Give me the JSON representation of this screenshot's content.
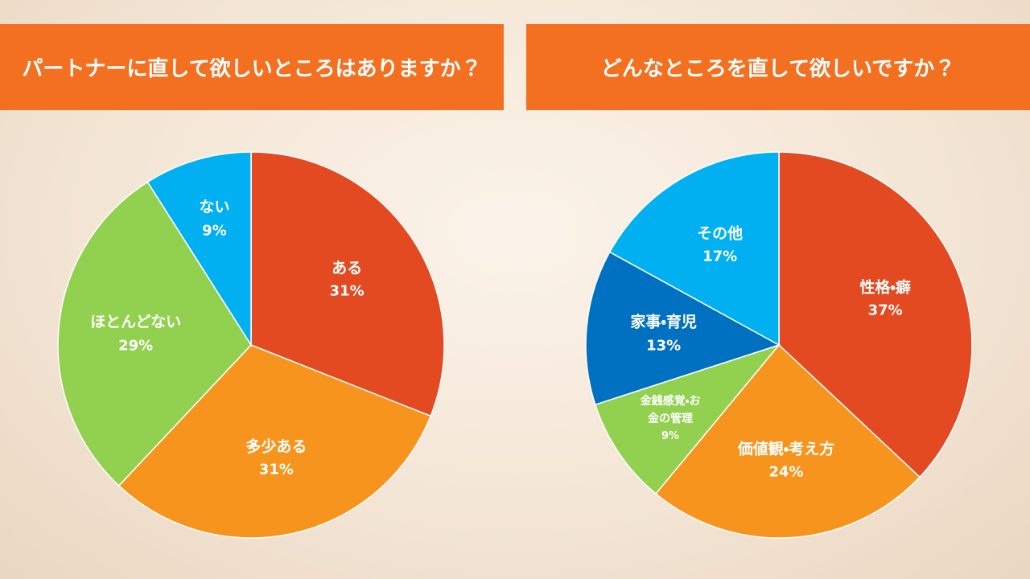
{
  "chart_data": [
    {
      "type": "pie",
      "title": "パートナーに直して欲しいところはありますか？",
      "categories": [
        "ある",
        "多少ある",
        "ほとんどない",
        "ない"
      ],
      "values": [
        31,
        31,
        29,
        9
      ],
      "value_labels": [
        "31%",
        "31%",
        "29%",
        "9%"
      ],
      "colors": [
        "#e34a22",
        "#f7941d",
        "#92d050",
        "#00b0f0"
      ]
    },
    {
      "type": "pie",
      "title": "どんなところを直して欲しいですか？",
      "categories": [
        "性格・癖",
        "価値観・考え方",
        "金銭感覚・お金の管理",
        "家事・育児",
        "その他"
      ],
      "values": [
        37,
        24,
        9,
        13,
        17
      ],
      "value_labels": [
        "37%",
        "24%",
        "9%",
        "13%",
        "17%"
      ],
      "colors": [
        "#e34a22",
        "#f7941d",
        "#92d050",
        "#0070c0",
        "#00b0f0"
      ]
    }
  ]
}
